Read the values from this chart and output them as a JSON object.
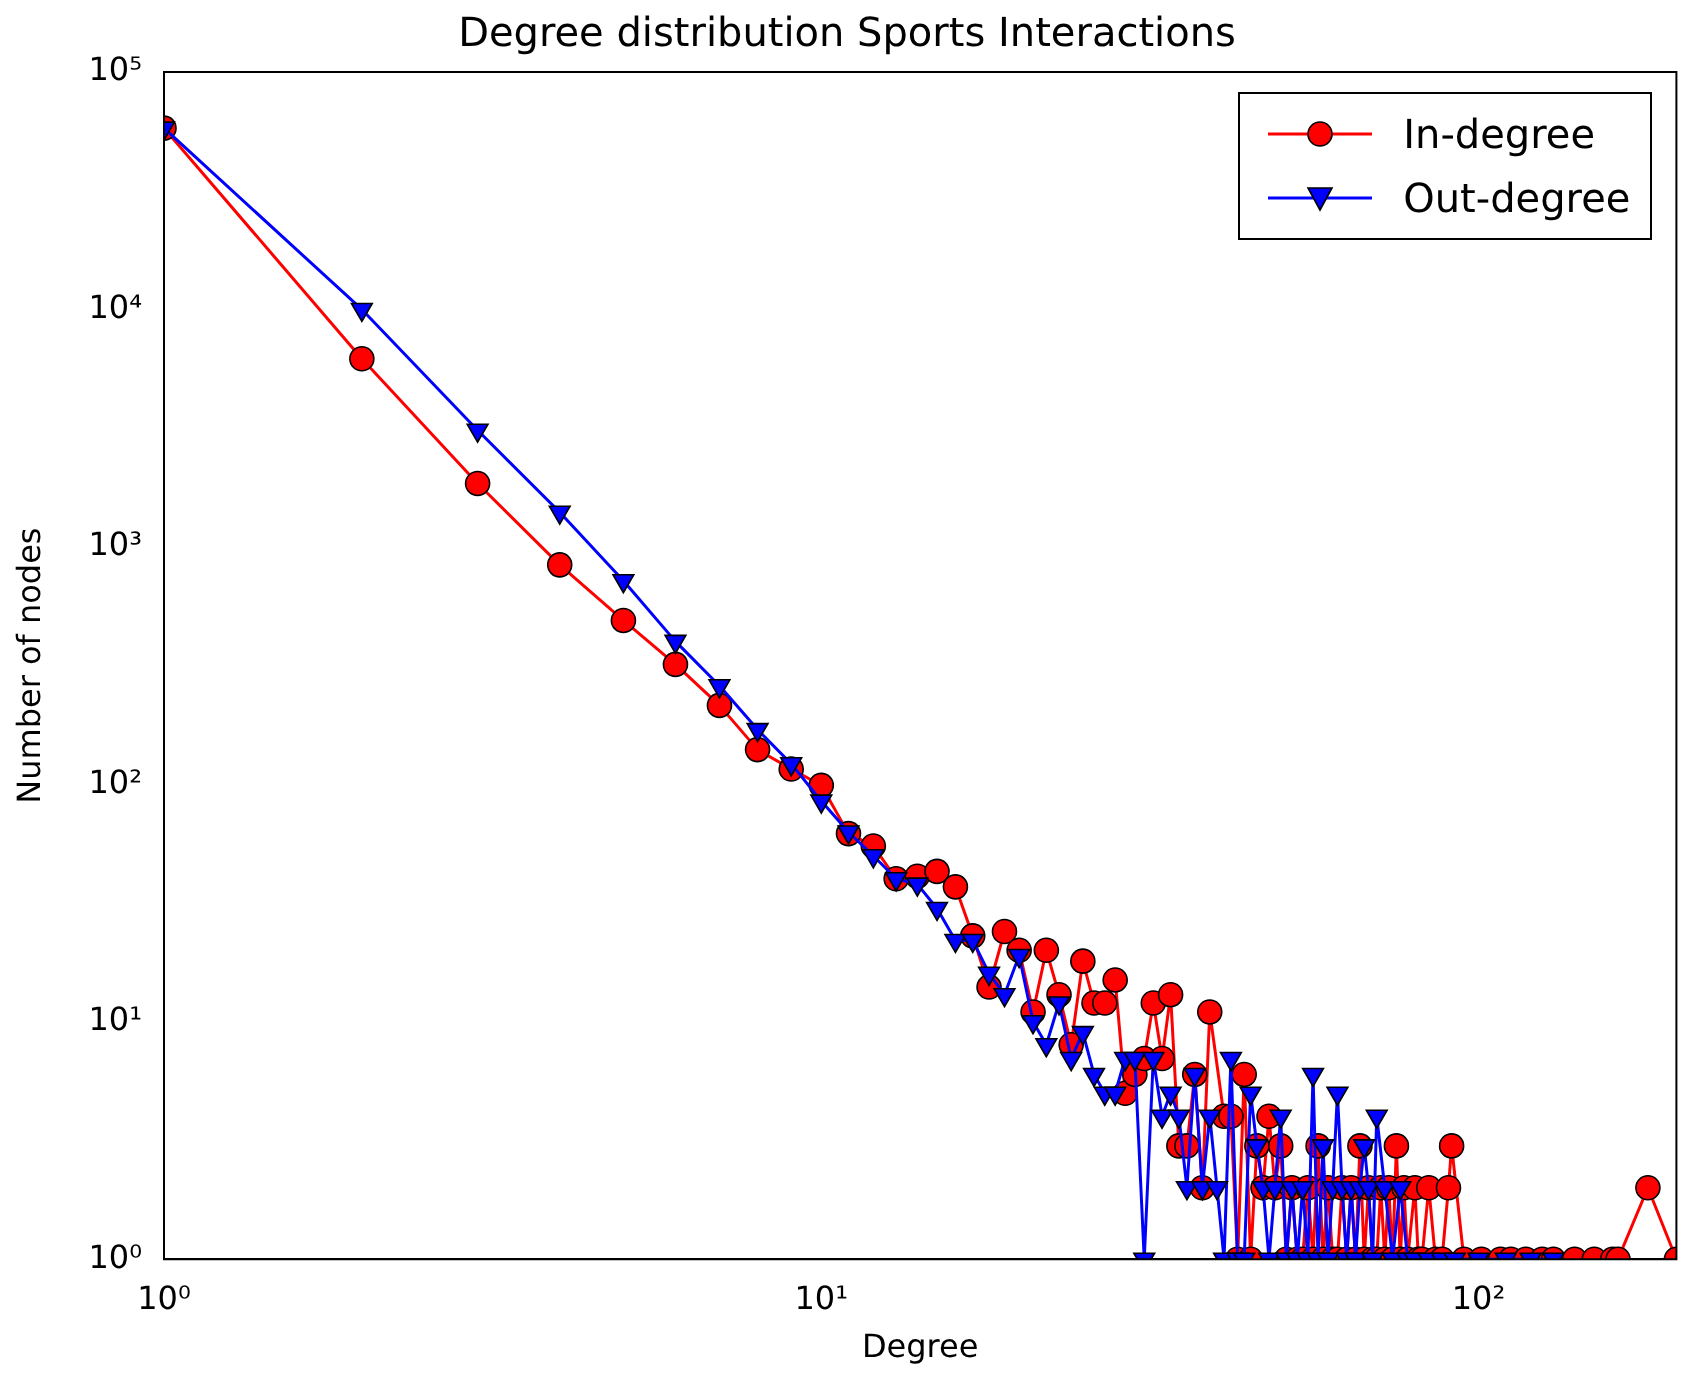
{
  "chart_data": {
    "type": "line",
    "title": "Degree distribution Sports Interactions",
    "xlabel": "Degree",
    "ylabel": "Number of nodes",
    "log": "xy",
    "grid": false,
    "legend": "top right",
    "xlim": [
      1,
      200
    ],
    "xticks": [
      {
        "value": 1,
        "label": "10⁰"
      },
      {
        "value": 10,
        "label": "10¹"
      },
      {
        "value": 100,
        "label": "10²"
      }
    ],
    "ylim": [
      1,
      100000
    ],
    "yticks": [
      {
        "value": 1,
        "label": "10⁰"
      },
      {
        "value": 10,
        "label": "10¹"
      },
      {
        "value": 100,
        "label": "10²"
      },
      {
        "value": 1000,
        "label": "10³"
      },
      {
        "value": 10000,
        "label": "10⁴"
      },
      {
        "value": 100000,
        "label": "10⁵"
      }
    ],
    "series": [
      {
        "name": "In-degree",
        "color": "#ff0000",
        "marker": "circle",
        "x": [
          1,
          2,
          3,
          4,
          5,
          6,
          7,
          8,
          9,
          10,
          11,
          12,
          13,
          14,
          15,
          16,
          17,
          18,
          19,
          20,
          21,
          22,
          23,
          24,
          25,
          26,
          27,
          28,
          29,
          30,
          31,
          32,
          33,
          34,
          35,
          36,
          37,
          38,
          39,
          41,
          42,
          43,
          44,
          45,
          46,
          47,
          48,
          49,
          50,
          51,
          52,
          53,
          54,
          55,
          56,
          57,
          58,
          59,
          60,
          61,
          62,
          63,
          64,
          65,
          66,
          67,
          68,
          69,
          70,
          71,
          72,
          73,
          74,
          75,
          76,
          77,
          78,
          80,
          81,
          82,
          84,
          86,
          88,
          90,
          91,
          95,
          101,
          108,
          112,
          118,
          125,
          130,
          140,
          150,
          160,
          163,
          181,
          200
        ],
        "values": [
          58000,
          6200,
          1850,
          840,
          490,
          320,
          215,
          140,
          116,
          99,
          62,
          55,
          40,
          41,
          43,
          37,
          23,
          14,
          24,
          20,
          11,
          20,
          13,
          8,
          18,
          12,
          12,
          15,
          5,
          6,
          7,
          12,
          7,
          13,
          3,
          3,
          6,
          2,
          11,
          4,
          4,
          1,
          6,
          1,
          3,
          2,
          4,
          2,
          3,
          1,
          2,
          1,
          1,
          2,
          1,
          3,
          1,
          2,
          1,
          1,
          2,
          1,
          2,
          1,
          3,
          1,
          2,
          1,
          1,
          2,
          1,
          2,
          1,
          3,
          1,
          2,
          1,
          2,
          1,
          1,
          2,
          1,
          1,
          2,
          3,
          1,
          1,
          1,
          1,
          1,
          1,
          1,
          1,
          1,
          1,
          1,
          2,
          1
        ]
      },
      {
        "name": "Out-degree",
        "color": "#0000ff",
        "marker": "triangle",
        "x": [
          1,
          2,
          3,
          4,
          5,
          6,
          7,
          8,
          9,
          10,
          11,
          12,
          13,
          14,
          15,
          16,
          17,
          18,
          19,
          20,
          21,
          22,
          23,
          24,
          25,
          26,
          27,
          28,
          29,
          30,
          31,
          32,
          33,
          34,
          35,
          36,
          37,
          38,
          39,
          40,
          41,
          42,
          43,
          44,
          45,
          46,
          47,
          48,
          49,
          50,
          51,
          52,
          53,
          54,
          55,
          56,
          57,
          58,
          59,
          60,
          61,
          62,
          63,
          64,
          65,
          66,
          67,
          68,
          69,
          70,
          72,
          74,
          76,
          78,
          80,
          84,
          88,
          92,
          100,
          110,
          120,
          130
        ],
        "values": [
          58000,
          10000,
          3100,
          1400,
          720,
          400,
          260,
          170,
          122,
          85,
          63,
          50,
          40,
          38,
          30,
          22,
          22,
          16,
          13,
          19,
          10,
          8,
          12,
          7,
          9,
          6,
          5,
          5,
          7,
          7,
          1,
          7,
          4,
          5,
          4,
          2,
          6,
          2,
          4,
          2,
          1,
          7,
          1,
          1,
          5,
          3,
          2,
          1,
          2,
          4,
          1,
          2,
          1,
          2,
          1,
          6,
          1,
          3,
          1,
          2,
          5,
          2,
          1,
          2,
          1,
          2,
          3,
          2,
          1,
          4,
          2,
          1,
          2,
          1,
          1,
          1,
          1,
          1,
          1,
          1,
          1,
          1
        ]
      }
    ]
  }
}
